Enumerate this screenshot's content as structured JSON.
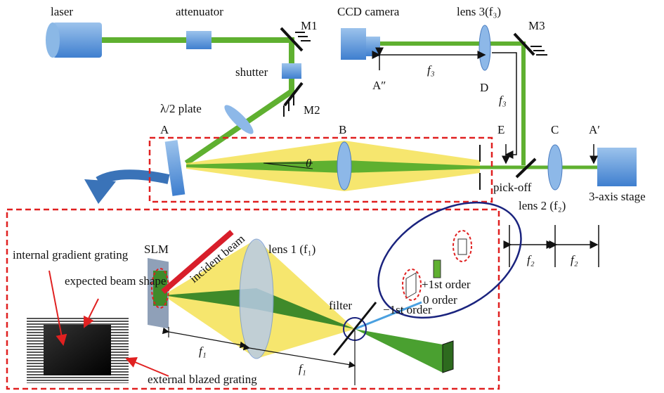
{
  "labels": [
    "laser",
    "attenuator",
    "CCD camera",
    "lens 3(f₃)",
    "M1",
    "M3",
    "shutter",
    "A″",
    "f₃",
    "D",
    "f₃",
    "λ/2 plate",
    "M2",
    "A",
    "B",
    "θ",
    "E",
    "C",
    "A′",
    "pick-off",
    "3-axis stage",
    "lens 2 (f₂)",
    "f₂",
    "f₂",
    "SLM",
    "incident beam",
    "internal gradient grating",
    "expected beam shape",
    "lens 1 (f₁)",
    "filter",
    "+1st order",
    "0 order",
    "−1st order",
    "f₁",
    "f₁",
    "external blazed grating"
  ]
}
